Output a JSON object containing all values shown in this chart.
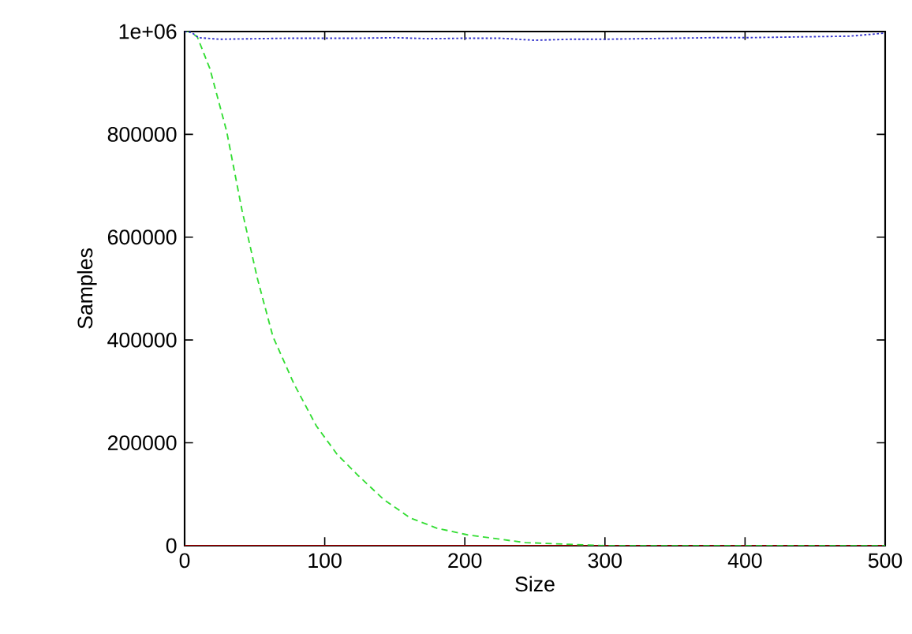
{
  "chart_data": {
    "type": "line",
    "xlabel": "Size",
    "ylabel": "Samples",
    "xlim": [
      0,
      500
    ],
    "ylim": [
      0,
      1000000
    ],
    "xticks": [
      0,
      100,
      200,
      300,
      400,
      500
    ],
    "yticks": [
      0,
      200000,
      400000,
      600000,
      800000,
      {
        "value": 1000000,
        "label": "1e+06"
      }
    ],
    "marker": "none",
    "series": [
      {
        "color": "#b00000",
        "line_style": "solid",
        "x": [
          0,
          500
        ],
        "values": [
          0,
          0
        ]
      },
      {
        "color": "#33dd33",
        "line_style": "dashed",
        "x": [
          0,
          3,
          9,
          18,
          30,
          41,
          52,
          63,
          78,
          94,
          109,
          124,
          142,
          161,
          180,
          202,
          243,
          300,
          400,
          500
        ],
        "values": [
          1000000,
          1000000,
          990000,
          928000,
          806000,
          652000,
          519000,
          407000,
          315000,
          233000,
          177000,
          136000,
          90000,
          54000,
          34000,
          21000,
          6000,
          0,
          0,
          0
        ]
      },
      {
        "color": "#3333cc",
        "line_style": "dotted",
        "x": [
          0,
          5,
          10,
          25,
          50,
          75,
          100,
          125,
          150,
          175,
          200,
          225,
          250,
          275,
          300,
          325,
          350,
          375,
          400,
          425,
          450,
          475,
          500
        ],
        "values": [
          1000000,
          998000,
          988000,
          985000,
          986000,
          987000,
          987000,
          987000,
          988000,
          986000,
          987000,
          987000,
          983000,
          985000,
          985000,
          986000,
          987000,
          988000,
          988000,
          989000,
          990000,
          991000,
          997000
        ]
      }
    ]
  }
}
